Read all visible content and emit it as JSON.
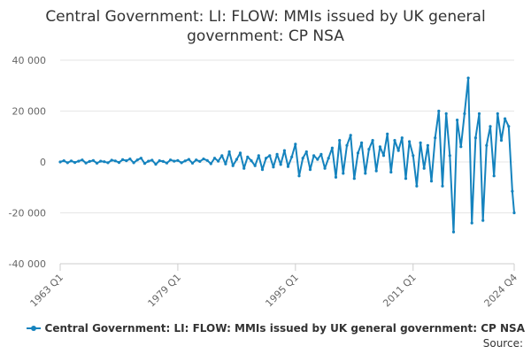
{
  "chart_data": {
    "type": "line",
    "title": "Central Government: LI: FLOW: MMIs issued by UK general government: CP NSA",
    "title_lines": [
      "Central Government: LI: FLOW: MMIs issued by UK general",
      "government: CP NSA"
    ],
    "xlabel": "",
    "ylabel": "",
    "x_tick_labels": [
      "1963 Q1",
      "1979 Q1",
      "1995 Q1",
      "2011 Q1",
      "2024 Q4"
    ],
    "y_tick_labels": [
      "40 000",
      "20 000",
      "0",
      "-20 000",
      "-40 000"
    ],
    "ylim": [
      -40000,
      40000
    ],
    "grid": true,
    "legend_position": "bottom",
    "series": [
      {
        "name": "Central Government: LI: FLOW: MMIs issued by UK general government: CP NSA",
        "color": "#1583be",
        "x": [
          "1963 Q1",
          "1963 Q3",
          "1964 Q1",
          "1964 Q3",
          "1965 Q1",
          "1965 Q3",
          "1966 Q1",
          "1966 Q3",
          "1967 Q1",
          "1967 Q3",
          "1968 Q1",
          "1968 Q3",
          "1969 Q1",
          "1969 Q3",
          "1970 Q1",
          "1970 Q3",
          "1971 Q1",
          "1971 Q3",
          "1972 Q1",
          "1972 Q3",
          "1973 Q1",
          "1973 Q3",
          "1974 Q1",
          "1974 Q3",
          "1975 Q1",
          "1975 Q3",
          "1976 Q1",
          "1976 Q3",
          "1977 Q1",
          "1977 Q3",
          "1978 Q1",
          "1978 Q3",
          "1979 Q1",
          "1979 Q3",
          "1980 Q1",
          "1980 Q3",
          "1981 Q1",
          "1981 Q3",
          "1982 Q1",
          "1982 Q3",
          "1983 Q1",
          "1983 Q3",
          "1984 Q1",
          "1984 Q3",
          "1985 Q1",
          "1985 Q3",
          "1986 Q1",
          "1986 Q3",
          "1987 Q1",
          "1987 Q3",
          "1988 Q1",
          "1988 Q3",
          "1989 Q1",
          "1989 Q3",
          "1990 Q1",
          "1990 Q3",
          "1991 Q1",
          "1991 Q3",
          "1992 Q1",
          "1992 Q3",
          "1993 Q1",
          "1993 Q3",
          "1994 Q1",
          "1994 Q3",
          "1995 Q1",
          "1995 Q3",
          "1996 Q1",
          "1996 Q3",
          "1997 Q1",
          "1997 Q3",
          "1998 Q1",
          "1998 Q3",
          "1999 Q1",
          "1999 Q3",
          "2000 Q1",
          "2000 Q3",
          "2001 Q1",
          "2001 Q3",
          "2002 Q1",
          "2002 Q3",
          "2003 Q1",
          "2003 Q3",
          "2004 Q1",
          "2004 Q3",
          "2005 Q1",
          "2005 Q3",
          "2006 Q1",
          "2006 Q3",
          "2007 Q1",
          "2007 Q3",
          "2008 Q1",
          "2008 Q3",
          "2009 Q1",
          "2009 Q3",
          "2010 Q1",
          "2010 Q3",
          "2011 Q1",
          "2011 Q3",
          "2012 Q1",
          "2012 Q3",
          "2013 Q1",
          "2013 Q3",
          "2014 Q1",
          "2014 Q3",
          "2015 Q1",
          "2015 Q3",
          "2016 Q1",
          "2016 Q3",
          "2017 Q1",
          "2017 Q3",
          "2018 Q1",
          "2018 Q3",
          "2019 Q1",
          "2019 Q3",
          "2020 Q1",
          "2020 Q3",
          "2021 Q1",
          "2021 Q3",
          "2022 Q1",
          "2022 Q3",
          "2023 Q1",
          "2023 Q3",
          "2024 Q1",
          "2024 Q3",
          "2024 Q4"
        ],
        "values": [
          0,
          500,
          -300,
          400,
          -200,
          300,
          800,
          -400,
          200,
          600,
          -500,
          300,
          100,
          -300,
          700,
          400,
          -200,
          900,
          500,
          1200,
          -300,
          800,
          1500,
          -600,
          300,
          700,
          -900,
          500,
          200,
          -400,
          800,
          300,
          600,
          -300,
          400,
          1000,
          -500,
          800,
          200,
          1200,
          600,
          -700,
          1500,
          300,
          2500,
          -800,
          4000,
          -1500,
          1000,
          3500,
          -2500,
          2000,
          500,
          -1500,
          2500,
          -3000,
          1500,
          2500,
          -2000,
          3000,
          -1000,
          4500,
          -1800,
          2000,
          7000,
          -5500,
          1500,
          4000,
          -3000,
          2500,
          1000,
          3000,
          -2500,
          1500,
          5500,
          -6000,
          8500,
          -4500,
          6500,
          10500,
          -6500,
          3500,
          7500,
          -4500,
          5000,
          8500,
          -3500,
          6000,
          2500,
          11000,
          -4000,
          8500,
          4500,
          9500,
          -6500,
          8000,
          2500,
          -9500,
          7500,
          -2500,
          6500,
          -7500,
          9500,
          20000,
          -9500,
          19000,
          2500,
          -27500,
          16500,
          6000,
          19000,
          33000,
          -24000,
          9500,
          19000,
          -23000,
          6500,
          14000,
          -5500,
          19000,
          8500,
          17000,
          14000,
          -11500,
          -20000
        ]
      }
    ]
  },
  "source": "Source:"
}
